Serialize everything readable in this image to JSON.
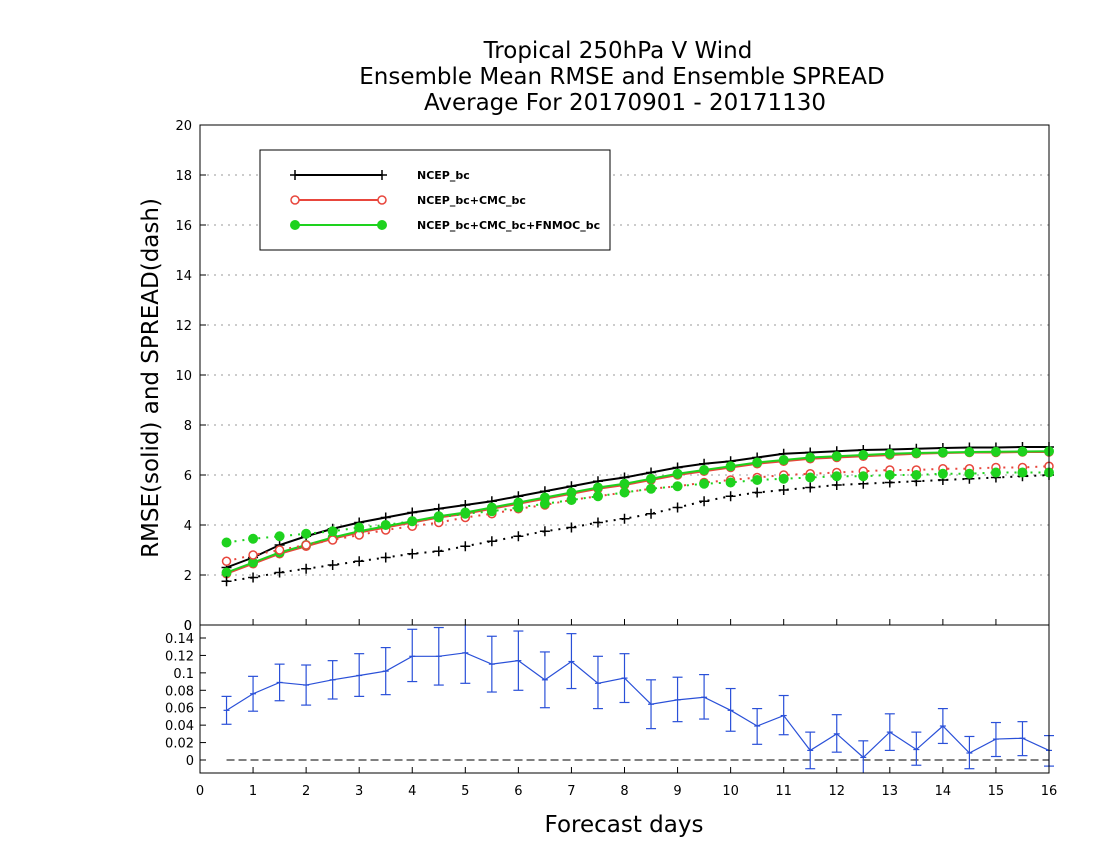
{
  "chart_data": {
    "type": "line",
    "title": [
      "Tropical 250hPa V Wind",
      "Ensemble Mean RMSE and Ensemble SPREAD",
      "Average For 20170901 - 20171130"
    ],
    "xlabel": "Forecast days",
    "ylabel": "RMSE(solid) and SPREAD(dash)",
    "xlim": [
      0,
      16
    ],
    "ylim": [
      0,
      20
    ],
    "x_ticks": [
      "0",
      "1",
      "2",
      "3",
      "4",
      "5",
      "6",
      "7",
      "8",
      "9",
      "10",
      "11",
      "12",
      "13",
      "14",
      "15",
      "16"
    ],
    "y_ticks": [
      "0",
      "2",
      "4",
      "6",
      "8",
      "10",
      "12",
      "14",
      "16",
      "18",
      "20"
    ],
    "grid": "horizontal dotted",
    "legend_position": "top-left",
    "colors": {
      "NCEP_bc": "#000000",
      "NCEP_bc+CMC_bc": "#e8463c",
      "NCEP_bc+CMC_bc+FNMOC_bc": "#1ed21e",
      "difference": "#2a50d8"
    },
    "x": [
      0.5,
      1,
      1.5,
      2,
      2.5,
      3,
      3.5,
      4,
      4.5,
      5,
      5.5,
      6,
      6.5,
      7,
      7.5,
      8,
      8.5,
      9,
      9.5,
      10,
      10.5,
      11,
      11.5,
      12,
      12.5,
      13,
      13.5,
      14,
      14.5,
      15,
      15.5,
      16
    ],
    "series": [
      {
        "name": "NCEP_bc",
        "kind": "rmse",
        "values": [
          2.3,
          2.7,
          3.2,
          3.55,
          3.85,
          4.1,
          4.3,
          4.5,
          4.65,
          4.8,
          4.95,
          5.15,
          5.35,
          5.55,
          5.75,
          5.9,
          6.1,
          6.3,
          6.45,
          6.55,
          6.7,
          6.85,
          6.9,
          6.95,
          7.0,
          7.02,
          7.05,
          7.08,
          7.1,
          7.1,
          7.12,
          7.12
        ]
      },
      {
        "name": "NCEP_bc+CMC_bc",
        "kind": "rmse",
        "values": [
          2.05,
          2.45,
          2.85,
          3.15,
          3.45,
          3.7,
          3.9,
          4.1,
          4.3,
          4.45,
          4.65,
          4.85,
          5.05,
          5.25,
          5.45,
          5.6,
          5.8,
          6.0,
          6.15,
          6.3,
          6.45,
          6.55,
          6.65,
          6.7,
          6.75,
          6.8,
          6.85,
          6.88,
          6.9,
          6.9,
          6.92,
          6.92
        ]
      },
      {
        "name": "NCEP_bc+CMC_bc+FNMOC_bc",
        "kind": "rmse",
        "values": [
          2.1,
          2.5,
          2.9,
          3.2,
          3.5,
          3.75,
          3.95,
          4.15,
          4.35,
          4.5,
          4.7,
          4.9,
          5.1,
          5.3,
          5.5,
          5.65,
          5.85,
          6.05,
          6.2,
          6.35,
          6.5,
          6.6,
          6.7,
          6.75,
          6.8,
          6.85,
          6.88,
          6.9,
          6.92,
          6.93,
          6.94,
          6.95
        ]
      },
      {
        "name": "NCEP_bc",
        "kind": "spread",
        "values": [
          1.75,
          1.9,
          2.1,
          2.25,
          2.4,
          2.55,
          2.7,
          2.85,
          2.95,
          3.15,
          3.35,
          3.55,
          3.75,
          3.9,
          4.1,
          4.25,
          4.45,
          4.7,
          4.95,
          5.15,
          5.3,
          5.4,
          5.5,
          5.6,
          5.65,
          5.7,
          5.75,
          5.8,
          5.85,
          5.9,
          5.95,
          6.0
        ]
      },
      {
        "name": "NCEP_bc+CMC_bc",
        "kind": "spread",
        "values": [
          2.55,
          2.8,
          3.0,
          3.2,
          3.4,
          3.6,
          3.8,
          3.95,
          4.1,
          4.3,
          4.45,
          4.65,
          4.8,
          5.0,
          5.15,
          5.3,
          5.45,
          5.55,
          5.7,
          5.8,
          5.9,
          6.0,
          6.05,
          6.1,
          6.15,
          6.2,
          6.2,
          6.25,
          6.25,
          6.3,
          6.3,
          6.35
        ]
      },
      {
        "name": "NCEP_bc+CMC_bc+FNMOC_bc",
        "kind": "spread",
        "values": [
          3.3,
          3.45,
          3.55,
          3.65,
          3.75,
          3.9,
          4.0,
          4.15,
          4.3,
          4.45,
          4.55,
          4.7,
          4.85,
          5.0,
          5.15,
          5.3,
          5.45,
          5.55,
          5.65,
          5.7,
          5.8,
          5.85,
          5.9,
          5.95,
          5.95,
          6.0,
          6.0,
          6.05,
          6.05,
          6.1,
          6.1,
          6.1
        ]
      }
    ],
    "difference_panel": {
      "ylim": [
        0,
        0.15
      ],
      "y_ticks": [
        "0",
        "0.02",
        "0.04",
        "0.06",
        "0.08",
        "0.1",
        "0.12",
        "0.14"
      ],
      "x": [
        0.5,
        1,
        1.5,
        2,
        2.5,
        3,
        3.5,
        4,
        4.5,
        5,
        5.5,
        6,
        6.5,
        7,
        7.5,
        8,
        8.5,
        9,
        9.5,
        10,
        10.5,
        11,
        11.5,
        12,
        12.5,
        13,
        13.5,
        14,
        14.5,
        15,
        15.5,
        16
      ],
      "values": [
        0.057,
        0.076,
        0.089,
        0.086,
        0.092,
        0.097,
        0.102,
        0.119,
        0.119,
        0.123,
        0.11,
        0.114,
        0.092,
        0.113,
        0.088,
        0.094,
        0.064,
        0.069,
        0.072,
        0.057,
        0.039,
        0.051,
        0.011,
        0.03,
        0.003,
        0.032,
        0.012,
        0.039,
        0.008,
        0.024,
        0.025,
        0.011
      ],
      "err_low": [
        0.041,
        0.056,
        0.068,
        0.063,
        0.07,
        0.073,
        0.075,
        0.09,
        0.086,
        0.088,
        0.078,
        0.08,
        0.06,
        0.082,
        0.059,
        0.066,
        0.036,
        0.044,
        0.047,
        0.033,
        0.018,
        0.029,
        -0.01,
        0.009,
        -0.015,
        0.011,
        -0.006,
        0.019,
        -0.01,
        0.004,
        0.005,
        -0.007
      ],
      "err_high": [
        0.073,
        0.096,
        0.11,
        0.109,
        0.114,
        0.122,
        0.129,
        0.15,
        0.152,
        0.156,
        0.142,
        0.148,
        0.124,
        0.145,
        0.119,
        0.122,
        0.092,
        0.095,
        0.098,
        0.082,
        0.059,
        0.074,
        0.032,
        0.052,
        0.022,
        0.053,
        0.032,
        0.059,
        0.027,
        0.043,
        0.044,
        0.028
      ]
    }
  }
}
